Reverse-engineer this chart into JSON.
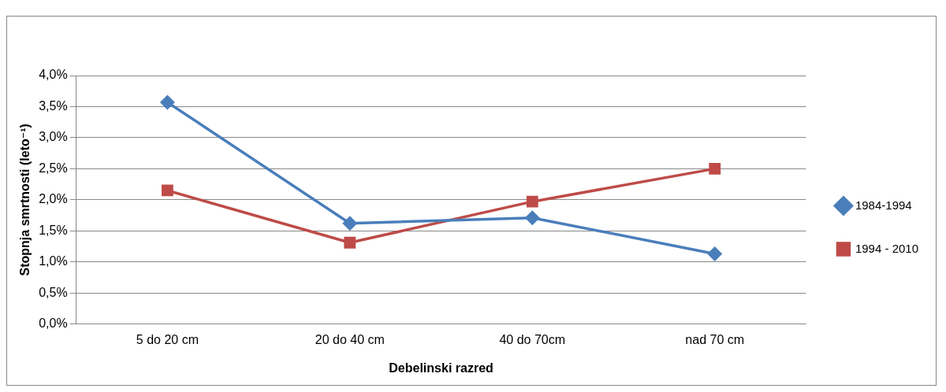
{
  "chart_data": {
    "type": "line",
    "xlabel": "Debelinski razred",
    "ylabel": "Stopnja smrtnosti (leto⁻¹)",
    "categories": [
      "5 do 20 cm",
      "20 do 40 cm",
      "40 do 70cm",
      "nad 70 cm"
    ],
    "series": [
      {
        "name": "1984-1994",
        "color": "#4a7ebb",
        "marker": "diamond",
        "values": [
          3.57,
          1.62,
          1.71,
          1.13
        ]
      },
      {
        "name": "1994 - 2010",
        "color": "#be4b48",
        "marker": "square",
        "values": [
          2.15,
          1.31,
          1.97,
          2.5
        ]
      }
    ],
    "ylim": [
      0,
      4
    ],
    "yticks": [
      {
        "value": 0,
        "label": "0,0%"
      },
      {
        "value": 0.5,
        "label": "0,5%"
      },
      {
        "value": 1,
        "label": "1,0%"
      },
      {
        "value": 1.5,
        "label": "1,5%"
      },
      {
        "value": 2,
        "label": "2,0%"
      },
      {
        "value": 2.5,
        "label": "2,5%"
      },
      {
        "value": 3,
        "label": "3,0%"
      },
      {
        "value": 3.5,
        "label": "3,5%"
      },
      {
        "value": 4,
        "label": "4,0%"
      }
    ],
    "grid": "y",
    "legend": "right",
    "line_style": "solid"
  }
}
